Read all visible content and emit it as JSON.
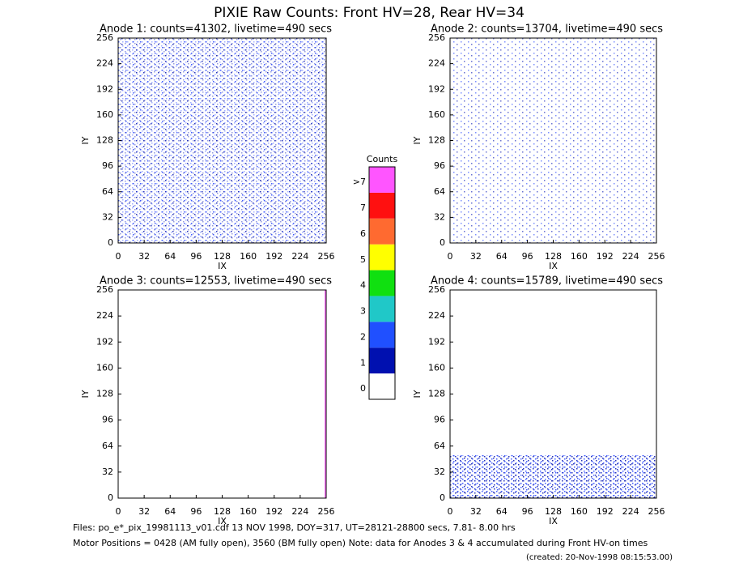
{
  "title": "PIXIE Raw Counts:  Front HV=28, Rear HV=34",
  "panels": [
    {
      "title": "Anode 1: counts=41302, livetime=490 secs",
      "x_label": "IX",
      "y_label": "IY",
      "xlim": [
        0,
        256
      ],
      "ylim": [
        0,
        256
      ],
      "xticks": [
        0,
        32,
        64,
        96,
        128,
        160,
        192,
        224,
        256
      ],
      "yticks": [
        0,
        32,
        64,
        96,
        128,
        160,
        192,
        224,
        256
      ]
    },
    {
      "title": "Anode 2: counts=13704, livetime=490 secs",
      "x_label": "IX",
      "y_label": "IY",
      "xlim": [
        0,
        256
      ],
      "ylim": [
        0,
        256
      ],
      "xticks": [
        0,
        32,
        64,
        96,
        128,
        160,
        192,
        224,
        256
      ],
      "yticks": [
        0,
        32,
        64,
        96,
        128,
        160,
        192,
        224,
        256
      ]
    },
    {
      "title": "Anode 3: counts=12553, livetime=490 secs",
      "x_label": "IX",
      "y_label": "IY",
      "xlim": [
        0,
        256
      ],
      "ylim": [
        0,
        256
      ],
      "xticks": [
        0,
        32,
        64,
        96,
        128,
        160,
        192,
        224,
        256
      ],
      "yticks": [
        0,
        32,
        64,
        96,
        128,
        160,
        192,
        224,
        256
      ]
    },
    {
      "title": "Anode 4: counts=15789, livetime=490 secs",
      "x_label": "IX",
      "y_label": "IY",
      "xlim": [
        0,
        256
      ],
      "ylim": [
        0,
        256
      ],
      "xticks": [
        0,
        32,
        64,
        96,
        128,
        160,
        192,
        224,
        256
      ],
      "yticks": [
        0,
        32,
        64,
        96,
        128,
        160,
        192,
        224,
        256
      ]
    }
  ],
  "colorbar": {
    "title": "Counts",
    "levels": [
      {
        "label": "0",
        "color": "#ffffff"
      },
      {
        "label": "1",
        "color": "#0010b0"
      },
      {
        "label": "2",
        "color": "#2050ff"
      },
      {
        "label": "3",
        "color": "#20c8c8"
      },
      {
        "label": "4",
        "color": "#10e010"
      },
      {
        "label": "5",
        "color": "#ffff00"
      },
      {
        "label": "6",
        "color": "#ff6a30"
      },
      {
        "label": "7",
        "color": "#ff1010"
      },
      {
        "label": ">7",
        "color": "#ff55ff"
      }
    ]
  },
  "footer": [
    "Files: po_e*_pix_19981113_v01.cdf    13 NOV 1998, DOY=317, UT=28121-28800 secs,  7.81- 8.00 hrs",
    "Motor Positions = 0428 (AM fully open), 3560 (BM fully open)    Note: data for Anodes 3 & 4 accumulated during Front HV-on times",
    "(created: 20-Nov-1998 08:15:53.00)"
  ]
}
